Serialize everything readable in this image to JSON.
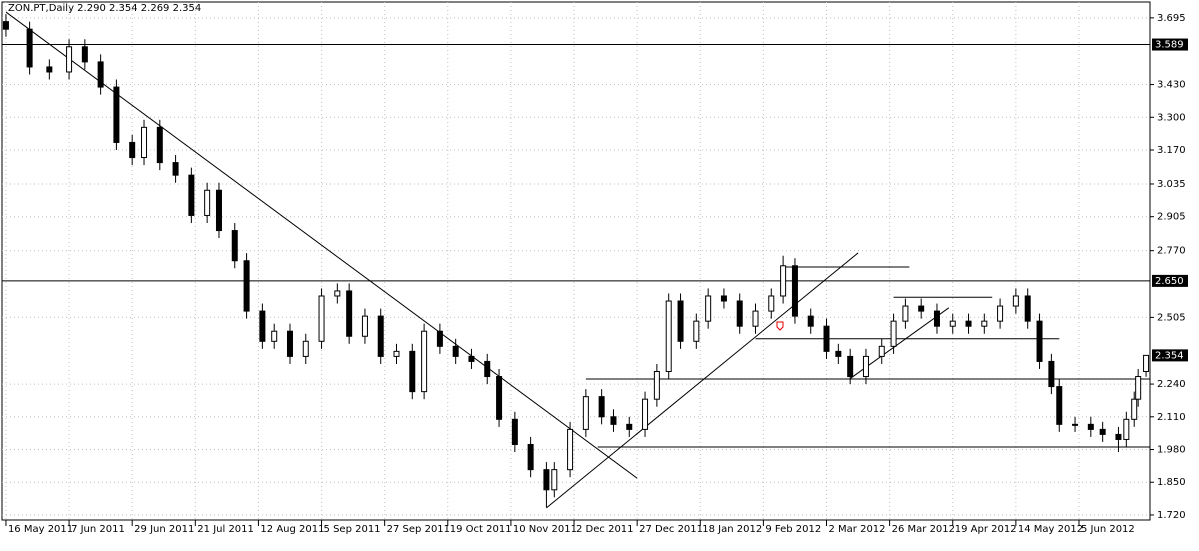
{
  "chart_data": {
    "type": "candlestick",
    "title": "ZON.PT,Daily  2.290 2.354 2.269 2.354",
    "grid": true,
    "up_color": "#ffffff",
    "down_color": "#000000",
    "edge_color": "#000000",
    "xlim": [
      -1,
      290
    ],
    "ylim": [
      1.7,
      3.758
    ],
    "xticks": [
      {
        "value": 0,
        "label": "16 May 2011"
      },
      {
        "value": 16,
        "label": "7 Jun 2011"
      },
      {
        "value": 32,
        "label": "29 Jun 2011"
      },
      {
        "value": 48,
        "label": "21 Jul 2011"
      },
      {
        "value": 64,
        "label": "12 Aug 2011"
      },
      {
        "value": 80,
        "label": "5 Sep 2011"
      },
      {
        "value": 96,
        "label": "27 Sep 2011"
      },
      {
        "value": 112,
        "label": "19 Oct 2011"
      },
      {
        "value": 128,
        "label": "10 Nov 2011"
      },
      {
        "value": 144,
        "label": "2 Dec 2011"
      },
      {
        "value": 160,
        "label": "27 Dec 2011"
      },
      {
        "value": 176,
        "label": "18 Jan 2012"
      },
      {
        "value": 192,
        "label": "9 Feb 2012"
      },
      {
        "value": 208,
        "label": "2 Mar 2012"
      },
      {
        "value": 224,
        "label": "26 Mar 2012"
      },
      {
        "value": 240,
        "label": "19 Apr 2012"
      },
      {
        "value": 256,
        "label": "14 May 2012"
      },
      {
        "value": 272,
        "label": "5 Jun 2012"
      }
    ],
    "yticks": [
      3.695,
      {
        "value": 3.43,
        "label": "3.430"
      },
      {
        "value": 3.3,
        "label": "3.300"
      },
      {
        "value": 3.17,
        "label": "3.170"
      },
      3.035,
      2.905,
      {
        "value": 2.77,
        "label": "2.770"
      },
      2.505,
      {
        "value": 2.24,
        "label": "2.240"
      },
      {
        "value": 2.11,
        "label": "2.110"
      },
      {
        "value": 1.98,
        "label": "1.980"
      },
      {
        "value": 1.85,
        "label": "1.850"
      },
      {
        "value": 1.72,
        "label": "1.720"
      }
    ],
    "x": [
      0,
      6,
      11,
      16,
      20,
      24,
      28,
      32,
      35,
      39,
      43,
      47,
      51,
      54,
      58,
      61,
      65,
      68,
      72,
      76,
      80,
      84,
      87,
      91,
      95,
      99,
      103,
      106,
      110,
      114,
      118,
      122,
      125,
      129,
      133,
      137,
      139,
      143,
      147,
      151,
      154,
      158,
      162,
      165,
      168,
      171,
      175,
      178,
      182,
      186,
      190,
      194,
      197,
      200,
      204,
      208,
      211,
      214,
      218,
      222,
      225,
      228,
      232,
      236,
      240,
      244,
      248,
      252,
      256,
      259,
      262,
      265,
      267,
      271,
      275,
      278,
      282,
      284,
      286,
      287,
      289
    ],
    "open": [
      3.68,
      3.65,
      3.5,
      3.48,
      3.58,
      3.52,
      3.42,
      3.2,
      3.14,
      3.26,
      3.12,
      3.07,
      2.91,
      3.01,
      2.85,
      2.73,
      2.53,
      2.41,
      2.45,
      2.35,
      2.41,
      2.59,
      2.61,
      2.43,
      2.51,
      2.35,
      2.37,
      2.21,
      2.45,
      2.39,
      2.35,
      2.33,
      2.27,
      2.1,
      2.0,
      1.9,
      1.82,
      1.9,
      2.06,
      2.19,
      2.11,
      2.08,
      2.06,
      2.18,
      2.29,
      2.57,
      2.41,
      2.49,
      2.59,
      2.57,
      2.47,
      2.53,
      2.59,
      2.71,
      2.51,
      2.47,
      2.37,
      2.35,
      2.27,
      2.35,
      2.39,
      2.49,
      2.55,
      2.53,
      2.47,
      2.49,
      2.47,
      2.49,
      2.55,
      2.59,
      2.49,
      2.33,
      2.23,
      2.08,
      2.08,
      2.06,
      2.04,
      2.02,
      2.1,
      2.18,
      2.29
    ],
    "high": [
      3.71,
      3.68,
      3.53,
      3.61,
      3.61,
      3.55,
      3.45,
      3.23,
      3.29,
      3.29,
      3.15,
      3.1,
      3.04,
      3.04,
      2.88,
      2.76,
      2.56,
      2.48,
      2.48,
      2.44,
      2.62,
      2.64,
      2.64,
      2.54,
      2.54,
      2.4,
      2.4,
      2.48,
      2.48,
      2.42,
      2.38,
      2.36,
      2.3,
      2.13,
      2.03,
      1.93,
      1.93,
      2.09,
      2.22,
      2.22,
      2.14,
      2.11,
      2.21,
      2.32,
      2.6,
      2.6,
      2.52,
      2.62,
      2.62,
      2.6,
      2.56,
      2.62,
      2.75,
      2.74,
      2.54,
      2.5,
      2.4,
      2.38,
      2.38,
      2.42,
      2.52,
      2.58,
      2.58,
      2.56,
      2.52,
      2.52,
      2.52,
      2.58,
      2.62,
      2.62,
      2.52,
      2.36,
      2.26,
      2.11,
      2.11,
      2.09,
      2.07,
      2.13,
      2.21,
      2.3,
      2.354
    ],
    "low": [
      3.62,
      3.47,
      3.45,
      3.45,
      3.49,
      3.39,
      3.17,
      3.11,
      3.11,
      3.09,
      3.04,
      2.88,
      2.88,
      2.82,
      2.7,
      2.5,
      2.38,
      2.38,
      2.32,
      2.32,
      2.38,
      2.56,
      2.4,
      2.4,
      2.32,
      2.32,
      2.18,
      2.18,
      2.36,
      2.32,
      2.3,
      2.24,
      2.07,
      1.97,
      1.87,
      1.75,
      1.79,
      1.87,
      2.03,
      2.08,
      2.05,
      2.03,
      2.03,
      2.15,
      2.26,
      2.38,
      2.38,
      2.46,
      2.54,
      2.44,
      2.44,
      2.5,
      2.56,
      2.48,
      2.44,
      2.34,
      2.32,
      2.24,
      2.24,
      2.32,
      2.36,
      2.46,
      2.5,
      2.44,
      2.44,
      2.44,
      2.44,
      2.46,
      2.52,
      2.46,
      2.3,
      2.2,
      2.05,
      2.05,
      2.03,
      2.01,
      1.97,
      1.99,
      2.07,
      2.15,
      2.269
    ],
    "close": [
      3.65,
      3.5,
      3.48,
      3.58,
      3.52,
      3.42,
      3.2,
      3.14,
      3.26,
      3.12,
      3.07,
      2.91,
      3.01,
      2.85,
      2.73,
      2.53,
      2.41,
      2.45,
      2.35,
      2.41,
      2.59,
      2.61,
      2.43,
      2.51,
      2.35,
      2.37,
      2.21,
      2.45,
      2.39,
      2.35,
      2.33,
      2.27,
      2.1,
      2.0,
      1.9,
      1.82,
      1.9,
      2.06,
      2.19,
      2.11,
      2.08,
      2.06,
      2.18,
      2.29,
      2.57,
      2.41,
      2.49,
      2.59,
      2.57,
      2.47,
      2.53,
      2.59,
      2.71,
      2.51,
      2.47,
      2.37,
      2.35,
      2.27,
      2.35,
      2.39,
      2.49,
      2.55,
      2.53,
      2.47,
      2.49,
      2.47,
      2.49,
      2.55,
      2.59,
      2.49,
      2.33,
      2.23,
      2.08,
      2.08,
      2.06,
      2.04,
      2.02,
      2.1,
      2.18,
      2.27,
      2.354
    ],
    "hlines": [
      3.589,
      {
        "value": 2.65,
        "label": "2.650"
      }
    ],
    "trend_lines": [
      {
        "x": [
          0,
          160
        ],
        "y": [
          3.718,
          1.866
        ]
      },
      {
        "x": [
          137,
          216
        ],
        "y": [
          1.748,
          2.761
        ]
      },
      {
        "x": [
          214,
          239
        ],
        "y": [
          2.262,
          2.543
        ]
      },
      {
        "x": [
          150,
          290
        ],
        "y": [
          1.99,
          1.99
        ]
      },
      {
        "x": [
          147,
          290
        ],
        "y": [
          2.26,
          2.26
        ]
      },
      {
        "x": [
          190,
          267
        ],
        "y": [
          2.42,
          2.42
        ]
      },
      {
        "x": [
          197,
          229
        ],
        "y": [
          2.705,
          2.705
        ]
      },
      {
        "x": [
          225,
          250
        ],
        "y": [
          2.585,
          2.585
        ]
      }
    ]
  }
}
